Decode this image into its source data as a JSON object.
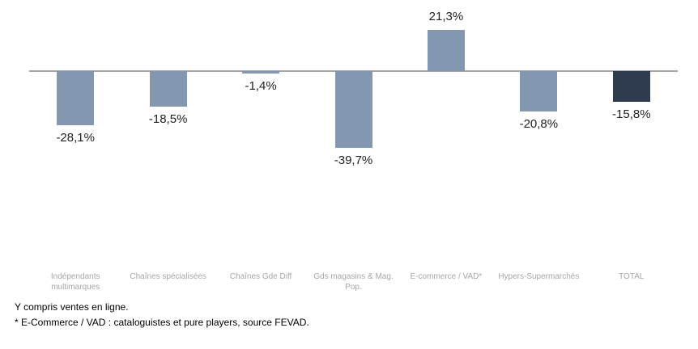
{
  "chart_data": {
    "type": "bar",
    "categories": [
      "Indépendants multimarques",
      "Chaînes spécialisées",
      "Chaînes Gde Diff",
      "Gds magasins & Mag. Pop.",
      "E-commerce / VAD*",
      "Hypers-Supermarchés",
      "TOTAL"
    ],
    "values": [
      -28.1,
      -18.5,
      -1.4,
      -39.7,
      21.3,
      -20.8,
      -15.8
    ],
    "value_labels": [
      "-28,1%",
      "-18,5%",
      "-1,4%",
      "-39,7%",
      "21,3%",
      "-20,8%",
      "-15,8%"
    ],
    "title": "",
    "xlabel": "",
    "ylabel": "",
    "ylim": [
      -45,
      25
    ],
    "grid": false,
    "legend_position": "none",
    "bar_color": "#8497B0",
    "total_bar_color": "#2F3B4E",
    "axis_color": "#A6A6A6",
    "category_label_color": "#A6A6A6",
    "value_label_color": "#1F1F1F"
  },
  "footnotes": [
    "Y compris ventes en ligne.",
    "* E-Commerce / VAD : cataloguistes et pure players, source FEVAD."
  ]
}
